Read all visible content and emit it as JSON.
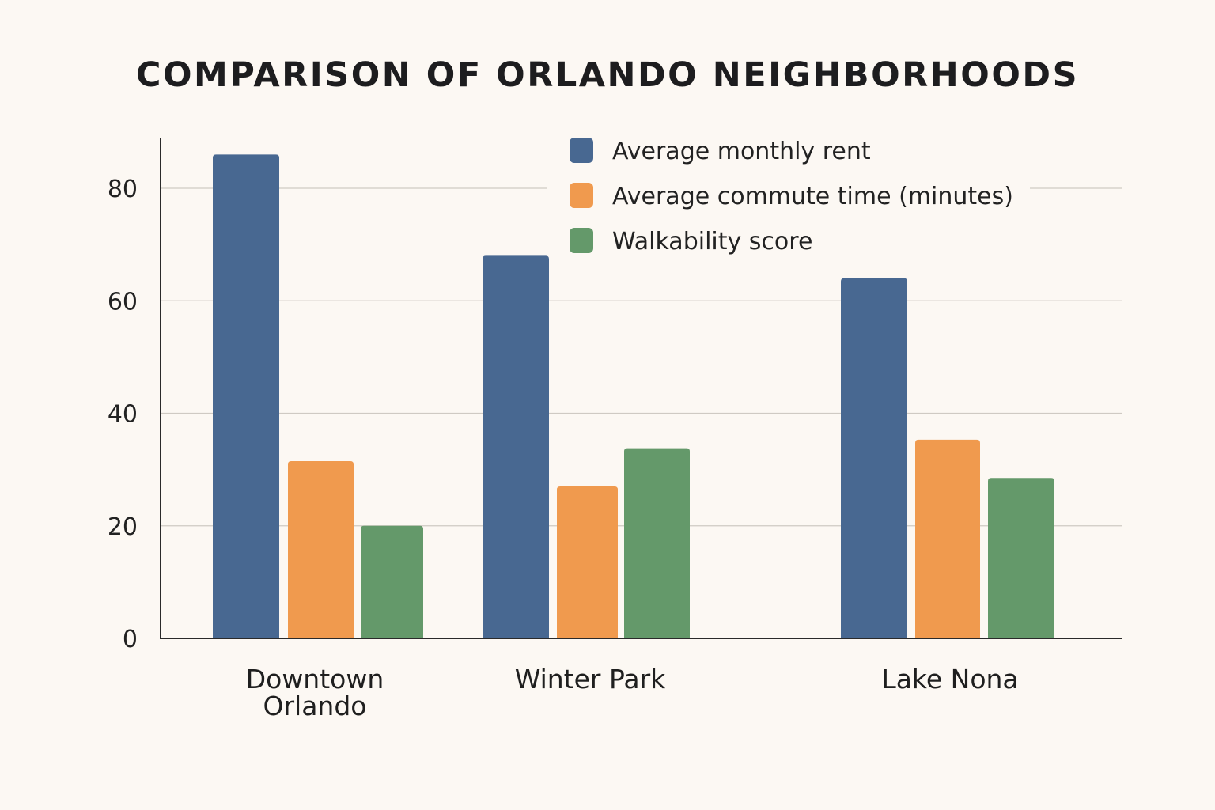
{
  "chart_data": {
    "type": "bar",
    "title": "COMPARISON OF ORLANDO NEIGHBORHOODS",
    "xlabel": "",
    "ylabel": "",
    "categories": [
      "Downtown Orlando",
      "Winter Park",
      "Lake Nona"
    ],
    "category_lines": [
      [
        "Downtown",
        "Orlando"
      ],
      [
        "Winter Park"
      ],
      [
        "Lake Nona"
      ]
    ],
    "series": [
      {
        "name": "Average monthly rent",
        "color": "#486891",
        "values": [
          86,
          68,
          64
        ]
      },
      {
        "name": "Average commute time (minutes)",
        "color": "#f09a4e",
        "values": [
          31.5,
          27,
          35.3
        ]
      },
      {
        "name": "Walkability score",
        "color": "#64996a",
        "values": [
          20,
          33.8,
          28.5
        ]
      }
    ],
    "ylim": [
      0,
      89
    ],
    "yticks": [
      0,
      20,
      40,
      60,
      80
    ],
    "grid": true,
    "legend_position": "top-right"
  }
}
